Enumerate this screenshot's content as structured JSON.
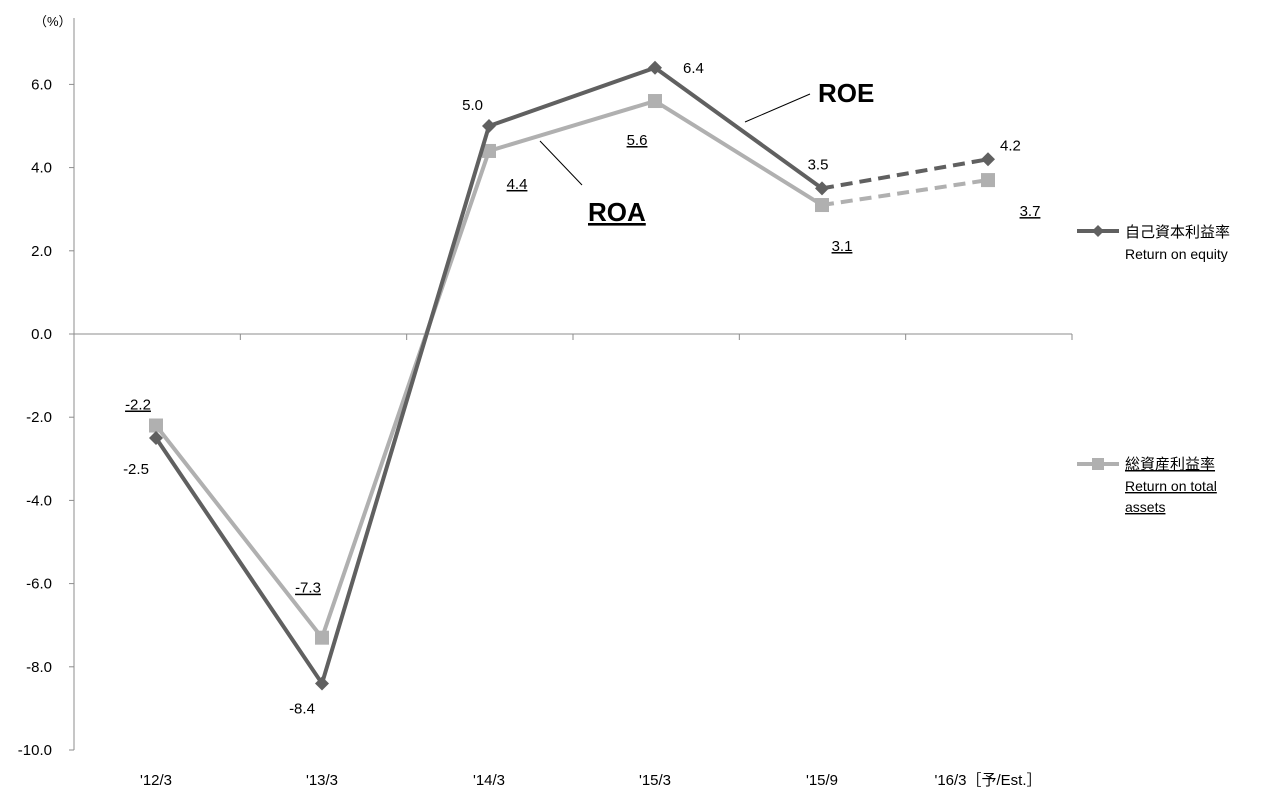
{
  "chart_data": {
    "type": "line",
    "unit_label": "（%）",
    "categories": [
      "'12/3",
      "'13/3",
      "'14/3",
      "'15/3",
      "'15/9",
      "'16/3［予/Est.］"
    ],
    "ylim": [
      -10.0,
      7.0
    ],
    "yticks": [
      "6.0",
      "4.0",
      "2.0",
      "0.0",
      "-2.0",
      "-4.0",
      "-6.0",
      "-8.0",
      "-10.0"
    ],
    "estimate_from_index": 4,
    "series": [
      {
        "name": "ROE",
        "legend_jp": "自己資本利益率",
        "legend_en": "Return on equity",
        "values": [
          -2.5,
          -8.4,
          5.0,
          6.4,
          3.5,
          4.2
        ],
        "labels": [
          "-2.5",
          "-8.4",
          "5.0",
          "6.4",
          "3.5",
          "4.2"
        ],
        "color": "#606060",
        "marker": "diamond",
        "callout": "ROE"
      },
      {
        "name": "ROA",
        "legend_jp": "総資産利益率",
        "legend_en": "Return on total assets",
        "legend_en_lines": [
          "Return on total",
          "assets"
        ],
        "values": [
          -2.2,
          -7.3,
          4.4,
          5.6,
          3.1,
          3.7
        ],
        "labels": [
          "-2.2",
          "-7.3",
          "4.4",
          "5.6",
          "3.1",
          "3.7"
        ],
        "color": "#b0b0b0",
        "marker": "square",
        "callout": "ROA"
      }
    ],
    "grid": false,
    "legend_position": "right"
  }
}
